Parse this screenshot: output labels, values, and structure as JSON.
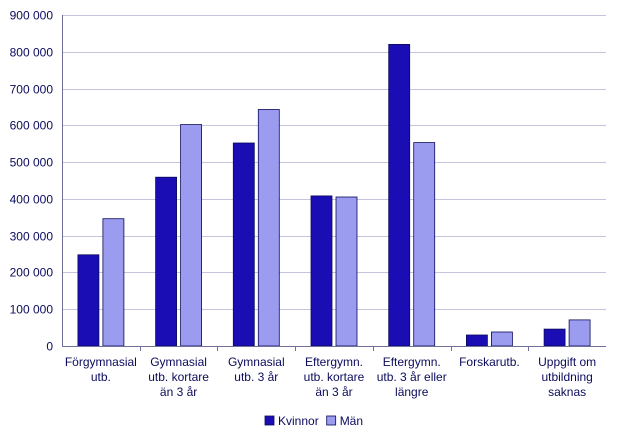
{
  "chart_data": {
    "type": "bar",
    "categories": [
      [
        "Förgymnasial",
        "utb."
      ],
      [
        "Gymnasial",
        "utb. kortare",
        "än 3 år"
      ],
      [
        "Gymnasial",
        "utb. 3 år"
      ],
      [
        "Eftergymn.",
        "utb. kortare",
        "än 3 år"
      ],
      [
        "Eftergymn.",
        "utb. 3 år eller",
        "längre"
      ],
      [
        "Forskarutb."
      ],
      [
        "Uppgift om",
        "utbildning",
        "saknas"
      ]
    ],
    "series": [
      {
        "name": "Kvinnor",
        "color": "#1a0db3",
        "values": [
          248000,
          459000,
          552000,
          408000,
          820000,
          30000,
          46000
        ]
      },
      {
        "name": "Män",
        "color": "#9b9bf0",
        "values": [
          346000,
          602000,
          643000,
          405000,
          553000,
          38000,
          71000
        ]
      }
    ],
    "ylim": [
      0,
      900000
    ],
    "yticks": [
      0,
      100000,
      200000,
      300000,
      400000,
      500000,
      600000,
      700000,
      800000,
      900000
    ],
    "ytick_labels": [
      "0",
      "100 000",
      "200 000",
      "300 000",
      "400 000",
      "500 000",
      "600 000",
      "700 000",
      "800 000",
      "900 000"
    ],
    "grid": true,
    "legend_position": "bottom-center",
    "title": "",
    "xlabel": "",
    "ylabel": ""
  }
}
